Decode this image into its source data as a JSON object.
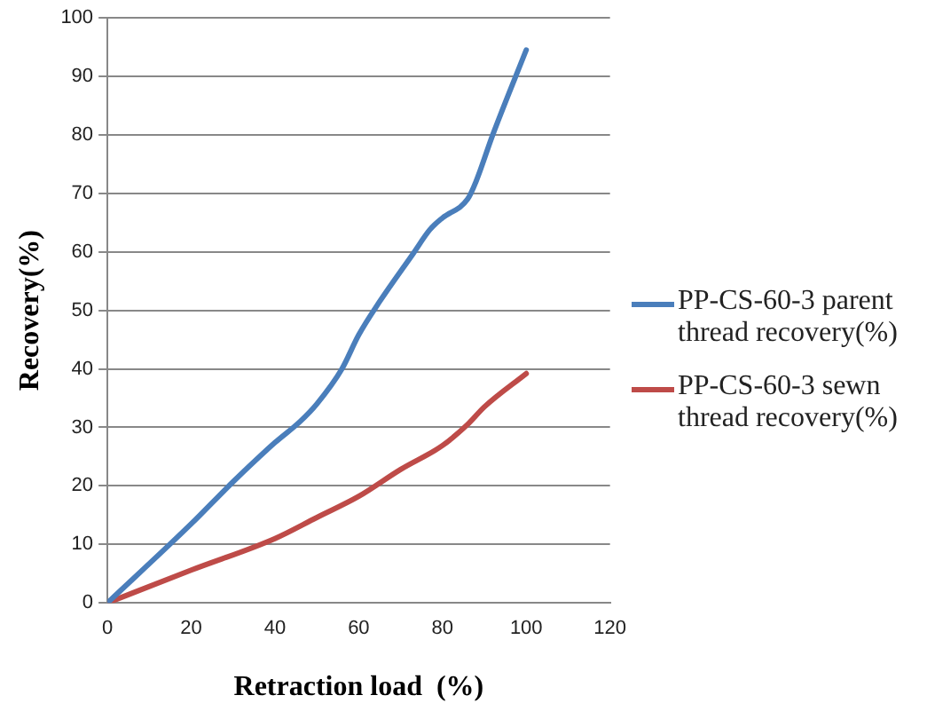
{
  "chart_data": {
    "type": "line",
    "xlabel": "Retraction load  (%)",
    "ylabel": "Recovery(%)",
    "xlim": [
      0,
      120
    ],
    "xticks": [
      0,
      20,
      40,
      60,
      80,
      100,
      120
    ],
    "ylim": [
      0,
      100
    ],
    "yticks": [
      0,
      10,
      20,
      30,
      40,
      50,
      60,
      70,
      80,
      90,
      100
    ],
    "grid": "y",
    "legend": "right",
    "marker": "none",
    "line_style": "solid",
    "series": [
      {
        "name": "PP-CS-60-3 parent thread recovery(%)",
        "color": "#4a7ebb",
        "x": [
          0,
          20,
          30,
          40,
          46,
          50,
          56,
          60,
          65,
          73,
          77,
          80,
          86,
          88,
          92,
          100
        ],
        "values": [
          0,
          13.5,
          20.7,
          27.4,
          31,
          34,
          40,
          45.8,
          51.5,
          59.7,
          63.8,
          65.8,
          69,
          72,
          80,
          94.5
        ]
      },
      {
        "name": "PP-CS-60-3 sewn thread recovery(%)",
        "color": "#be4b48",
        "x": [
          0,
          20,
          40,
          50,
          60,
          70,
          80,
          86,
          90,
          100
        ],
        "values": [
          0,
          5.6,
          11,
          14.6,
          18.2,
          22.8,
          26.9,
          30.5,
          33.5,
          39.2
        ]
      }
    ]
  }
}
